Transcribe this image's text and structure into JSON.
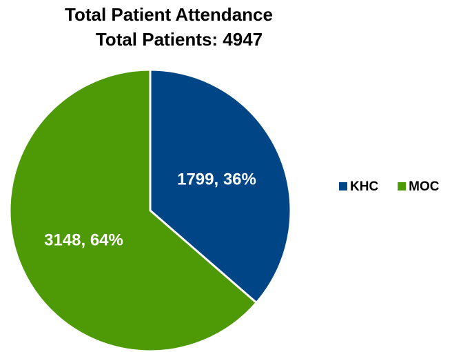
{
  "chart_data": {
    "type": "pie",
    "title": "Total Patient Attendance",
    "subtitle": "Total Patients: 4947",
    "categories": [
      "KHC",
      "MOC"
    ],
    "values": [
      1799,
      3148
    ],
    "value_labels": [
      "1799, 36%",
      "3148, 64%"
    ],
    "colors": [
      "#004586",
      "#4e9a06"
    ],
    "legend": "right"
  }
}
